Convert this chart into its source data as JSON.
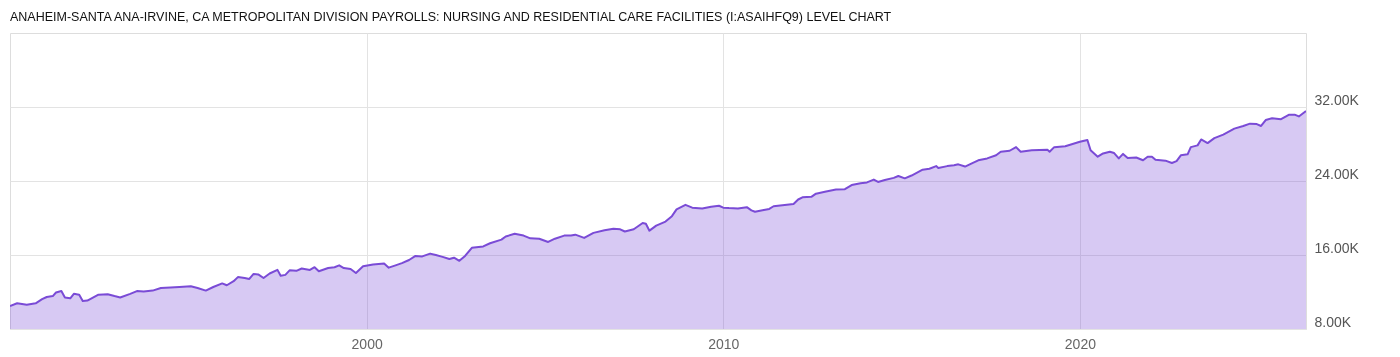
{
  "chart_data": {
    "type": "area",
    "title": "ANAHEIM-SANTA ANA-IRVINE, CA METROPOLITAN DIVISION PAYROLLS: NURSING AND RESIDENTIAL CARE FACILITIES (I:ASAIHFQ9) LEVEL CHART",
    "x": [
      1990.0,
      1990.2,
      1990.47,
      1990.72,
      1990.9,
      1991.03,
      1991.2,
      1991.29,
      1991.44,
      1991.54,
      1991.69,
      1991.79,
      1991.94,
      1992.04,
      1992.17,
      1992.48,
      1992.74,
      1992.93,
      1993.09,
      1993.37,
      1993.56,
      1993.75,
      1994.0,
      1994.23,
      1994.5,
      1994.75,
      1995.07,
      1995.26,
      1995.49,
      1995.7,
      1995.95,
      1996.08,
      1996.27,
      1996.39,
      1996.58,
      1996.71,
      1996.83,
      1996.96,
      1997.11,
      1997.28,
      1997.5,
      1997.59,
      1997.72,
      1997.84,
      1998.03,
      1998.18,
      1998.41,
      1998.54,
      1998.66,
      1998.92,
      1999.1,
      1999.23,
      1999.36,
      1999.55,
      1999.7,
      1999.9,
      2000.18,
      2000.49,
      2000.62,
      2000.81,
      2000.99,
      2001.19,
      2001.37,
      2001.56,
      2001.78,
      2001.94,
      2002.13,
      2002.32,
      2002.45,
      2002.6,
      2002.76,
      2002.95,
      2003.27,
      2003.46,
      2003.78,
      2003.9,
      2004.15,
      2004.4,
      2004.59,
      2004.84,
      2005.09,
      2005.28,
      2005.54,
      2005.73,
      2005.85,
      2006.1,
      2006.36,
      2006.67,
      2006.92,
      2007.11,
      2007.24,
      2007.49,
      2007.74,
      2007.83,
      2007.93,
      2008.12,
      2008.38,
      2008.56,
      2008.69,
      2008.94,
      2009.13,
      2009.41,
      2009.66,
      2009.88,
      2010.0,
      2010.16,
      2010.41,
      2010.66,
      2010.79,
      2010.89,
      2011.1,
      2011.29,
      2011.41,
      2011.66,
      2011.97,
      2012.1,
      2012.22,
      2012.47,
      2012.6,
      2012.85,
      2013.16,
      2013.41,
      2013.6,
      2013.85,
      2014.03,
      2014.22,
      2014.34,
      2014.53,
      2014.78,
      2014.91,
      2015.09,
      2015.28,
      2015.59,
      2015.78,
      2015.97,
      2016.03,
      2016.28,
      2016.47,
      2016.59,
      2016.78,
      2016.97,
      2017.15,
      2017.4,
      2017.65,
      2017.78,
      2018.03,
      2018.21,
      2018.34,
      2018.65,
      2019.09,
      2019.15,
      2019.28,
      2019.59,
      2019.84,
      2020.0,
      2020.21,
      2020.3,
      2020.5,
      2020.65,
      2020.84,
      2020.96,
      2021.09,
      2021.21,
      2021.34,
      2021.58,
      2021.77,
      2021.9,
      2022.02,
      2022.12,
      2022.4,
      2022.58,
      2022.71,
      2022.83,
      2023.02,
      2023.11,
      2023.3,
      2023.4,
      2023.58,
      2023.77,
      2024.02,
      2024.33,
      2024.58,
      2024.77,
      2024.96,
      2025.08,
      2025.21,
      2025.39,
      2025.64,
      2025.87,
      2026.02,
      2026.14,
      2026.34
    ],
    "series": [
      {
        "color": "#7a4bd6",
        "values": [
          10490,
          10780,
          10630,
          10780,
          11220,
          11460,
          11560,
          11950,
          12100,
          11410,
          11320,
          11800,
          11710,
          11020,
          11070,
          11710,
          11760,
          11560,
          11410,
          11800,
          12100,
          12050,
          12150,
          12440,
          12490,
          12540,
          12630,
          12440,
          12150,
          12540,
          12930,
          12730,
          13170,
          13610,
          13510,
          13410,
          13950,
          13900,
          13510,
          14000,
          14390,
          13760,
          13850,
          14340,
          14290,
          14540,
          14390,
          14680,
          14240,
          14590,
          14680,
          14880,
          14590,
          14490,
          14050,
          14780,
          14980,
          15070,
          14630,
          14880,
          15120,
          15460,
          15900,
          15850,
          16150,
          16000,
          15800,
          15560,
          15710,
          15370,
          15900,
          16780,
          16930,
          17270,
          17660,
          18000,
          18290,
          18100,
          17800,
          17760,
          17410,
          17760,
          18100,
          18100,
          18200,
          17850,
          18390,
          18680,
          18830,
          18780,
          18540,
          18780,
          19460,
          19370,
          18630,
          19170,
          19610,
          20200,
          20930,
          21420,
          21120,
          21020,
          21220,
          21320,
          21120,
          21070,
          21020,
          21170,
          20830,
          20680,
          20830,
          20980,
          21270,
          21370,
          21510,
          22000,
          22240,
          22290,
          22630,
          22830,
          23070,
          23120,
          23560,
          23760,
          23850,
          24150,
          23900,
          24100,
          24340,
          24540,
          24290,
          24590,
          25220,
          25320,
          25610,
          25410,
          25610,
          25710,
          25800,
          25560,
          25900,
          26240,
          26440,
          26780,
          27170,
          27270,
          27660,
          27170,
          27320,
          27370,
          27170,
          27660,
          27760,
          28050,
          28240,
          28440,
          27320,
          26630,
          26980,
          27170,
          27020,
          26440,
          26930,
          26490,
          26540,
          26240,
          26630,
          26630,
          26290,
          26200,
          25950,
          26150,
          26780,
          26880,
          27660,
          27850,
          28490,
          28100,
          28630,
          29020,
          29660,
          29950,
          30200,
          30150,
          29950,
          30590,
          30780,
          30680,
          31170,
          31170,
          30980,
          31560
        ]
      }
    ],
    "xlim": [
      1990.0,
      2026.34
    ],
    "xticks": [
      2000,
      2010,
      2020
    ],
    "ylim": [
      8000,
      40000
    ],
    "yticks": [
      {
        "value": 8000,
        "label": "8.00K"
      },
      {
        "value": 16000,
        "label": "16.00K"
      },
      {
        "value": 24000,
        "label": "24.00K"
      },
      {
        "value": 32000,
        "label": "32.00K"
      }
    ],
    "grid": true
  }
}
